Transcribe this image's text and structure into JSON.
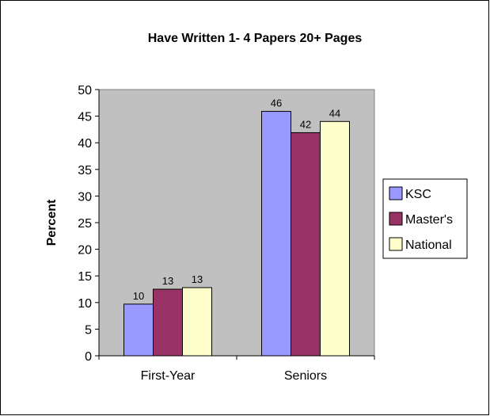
{
  "chart_data": {
    "type": "bar",
    "title": "Have Written 1- 4 Papers 20+ Pages",
    "xlabel": "",
    "ylabel": "Percent",
    "ylim": [
      0,
      50
    ],
    "yticks": [
      "0",
      "5",
      "10",
      "15",
      "20",
      "25",
      "30",
      "35",
      "40",
      "45",
      "50"
    ],
    "grid": false,
    "legend_position": "right",
    "plot_background": "#c0c0c0",
    "categories": [
      "First-Year",
      "Seniors"
    ],
    "series": [
      {
        "name": "KSC",
        "color": "#9999ff",
        "values": [
          9.7,
          45.9
        ],
        "labels": [
          "10",
          "46"
        ]
      },
      {
        "name": "Master's",
        "color": "#993366",
        "values": [
          12.5,
          41.9
        ],
        "labels": [
          "13",
          "42"
        ]
      },
      {
        "name": "National",
        "color": "#ffffcc",
        "values": [
          12.8,
          44.0
        ],
        "labels": [
          "13",
          "44"
        ]
      }
    ]
  }
}
